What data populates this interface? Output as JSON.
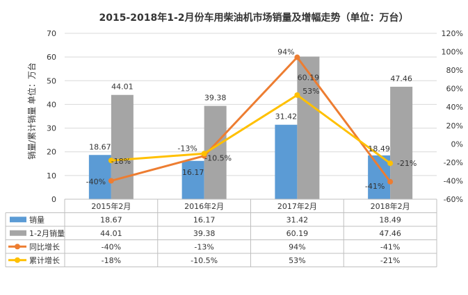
{
  "chart_data": {
    "type": "bar",
    "title": "2015-2018年1-2月份车用柴油机市场销量及增幅走势（单位：万台）",
    "ylabel": "销量/累计销量 单位：万台",
    "y_left_lim": [
      0,
      70
    ],
    "y_left_ticks": [
      "0",
      "10",
      "20",
      "30",
      "40",
      "50",
      "60",
      "70"
    ],
    "y_right_lim": [
      -60,
      120
    ],
    "y_right_ticks": [
      "-60%",
      "-40%",
      "-20%",
      "0%",
      "20%",
      "40%",
      "60%",
      "80%",
      "100%",
      "120%"
    ],
    "categories": [
      "2015年2月",
      "2016年2月",
      "2017年2月",
      "2018年2月"
    ],
    "bar_series": [
      {
        "name": "销量",
        "color": "#5b9bd5",
        "values": [
          18.67,
          16.17,
          31.42,
          18.49
        ],
        "labels": [
          "18.67",
          "16.17",
          "31.42",
          "18.49"
        ]
      },
      {
        "name": "1-2月销量",
        "color": "#a5a5a5",
        "values": [
          44.01,
          39.38,
          60.19,
          47.46
        ],
        "labels": [
          "44.01",
          "39.38",
          "60.19",
          "47.46"
        ]
      }
    ],
    "line_series": [
      {
        "name": "同比增长",
        "color": "#ed7d31",
        "values": [
          -40,
          -13,
          94,
          -41
        ],
        "labels": [
          "-40%",
          "-13%",
          "94%",
          "-41%"
        ]
      },
      {
        "name": "累计增长",
        "color": "#ffc000",
        "values": [
          -18,
          -10.5,
          53,
          -21
        ],
        "labels": [
          "-18%",
          "-10.5%",
          "53%",
          "-21%"
        ]
      }
    ],
    "grid": true,
    "legend": "data-table"
  }
}
